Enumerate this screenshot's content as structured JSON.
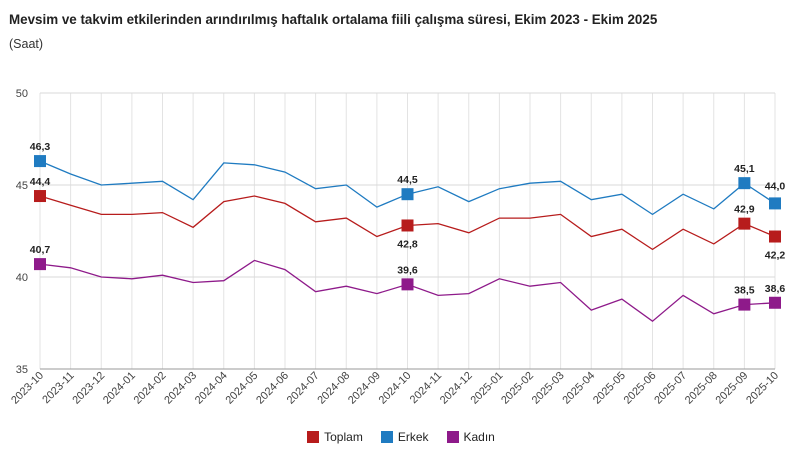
{
  "chart_data": {
    "type": "line",
    "title": "Mevsim ve takvim etkilerinden arındırılmış haftalık ortalama fiili çalışma süresi, Ekim 2023 - Ekim 2025",
    "subtitle": "(Saat)",
    "xlabel": "",
    "ylabel": "(Saat)",
    "ylim": [
      35,
      50
    ],
    "yticks": [
      "35",
      "40",
      "45",
      "50"
    ],
    "categories": [
      "2023-10",
      "2023-11",
      "2023-12",
      "2024-01",
      "2024-02",
      "2024-03",
      "2024-04",
      "2024-05",
      "2024-06",
      "2024-07",
      "2024-08",
      "2024-09",
      "2024-10",
      "2024-11",
      "2024-12",
      "2025-01",
      "2025-02",
      "2025-03",
      "2025-04",
      "2025-05",
      "2025-06",
      "2025-07",
      "2025-08",
      "2025-09",
      "2025-10"
    ],
    "series": [
      {
        "name": "Toplam",
        "color": "#b71c1c",
        "values": [
          44.4,
          43.9,
          43.4,
          43.4,
          43.5,
          42.7,
          44.1,
          44.4,
          44.0,
          43.0,
          43.2,
          42.2,
          42.8,
          42.9,
          42.4,
          43.2,
          43.2,
          43.4,
          42.2,
          42.6,
          41.5,
          42.6,
          41.8,
          42.9,
          42.2
        ],
        "labels": [
          {
            "index": 0,
            "text": "44,4"
          },
          {
            "index": 12,
            "text": "42,8"
          },
          {
            "index": 23,
            "text": "42,9"
          },
          {
            "index": 24,
            "text": "42,2"
          }
        ]
      },
      {
        "name": "Erkek",
        "color": "#1f7bc1",
        "values": [
          46.3,
          45.6,
          45.0,
          45.1,
          45.2,
          44.2,
          46.2,
          46.1,
          45.7,
          44.8,
          45.0,
          43.8,
          44.5,
          44.9,
          44.1,
          44.8,
          45.1,
          45.2,
          44.2,
          44.5,
          43.4,
          44.5,
          43.7,
          45.1,
          44.0
        ],
        "labels": [
          {
            "index": 0,
            "text": "46,3"
          },
          {
            "index": 12,
            "text": "44,5"
          },
          {
            "index": 23,
            "text": "45,1"
          },
          {
            "index": 24,
            "text": "44,0"
          }
        ]
      },
      {
        "name": "Kadın",
        "color": "#8e1a8a",
        "values": [
          40.7,
          40.5,
          40.0,
          39.9,
          40.1,
          39.7,
          39.8,
          40.9,
          40.4,
          39.2,
          39.5,
          39.1,
          39.6,
          39.0,
          39.1,
          39.9,
          39.5,
          39.7,
          38.2,
          38.8,
          37.6,
          39.0,
          38.0,
          38.5,
          38.6
        ],
        "labels": [
          {
            "index": 0,
            "text": "40,7"
          },
          {
            "index": 12,
            "text": "39,6"
          },
          {
            "index": 23,
            "text": "38,5"
          },
          {
            "index": 24,
            "text": "38,6"
          }
        ]
      }
    ],
    "legend_position": "bottom-center",
    "grid": true
  }
}
